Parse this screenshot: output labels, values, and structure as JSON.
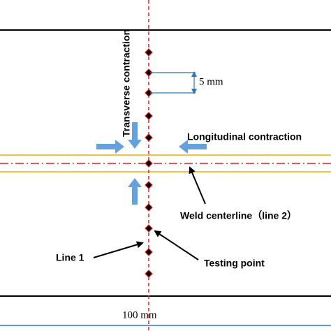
{
  "labels": {
    "transverse": "Transverse contraction",
    "longitudinal": "Longitudinal contraction",
    "spacing": "5 mm",
    "weld_centerline": "Weld centerline（line 2）",
    "line1": "Line 1",
    "testing_point": "Testing point",
    "width": "100 mm"
  }
}
